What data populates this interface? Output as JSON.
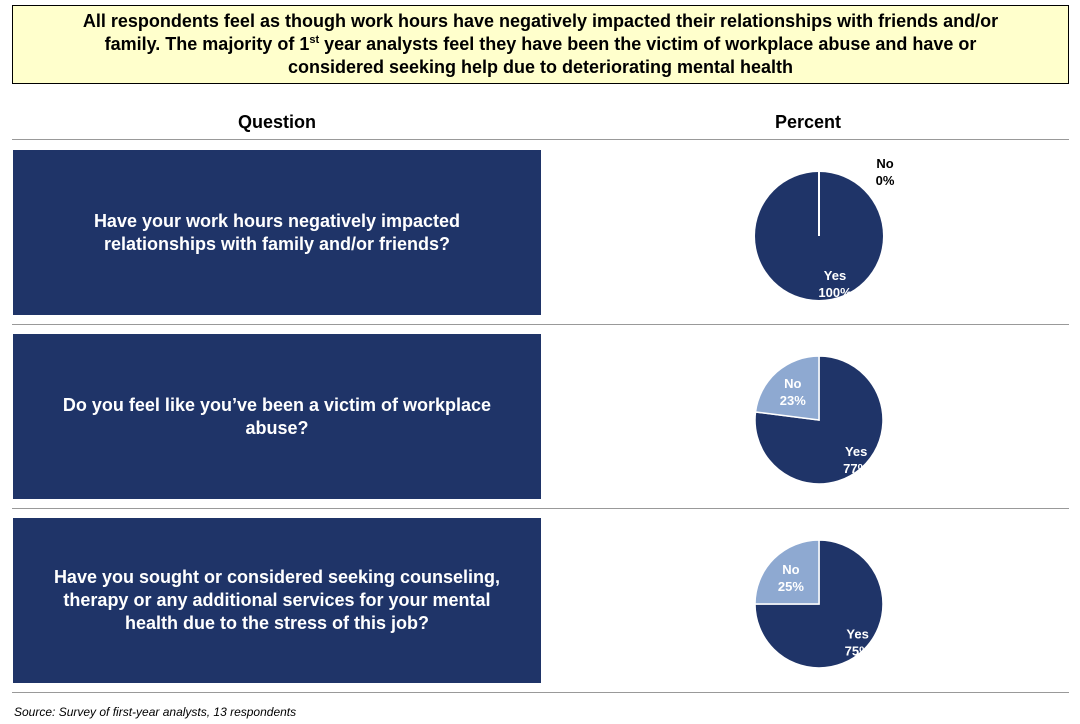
{
  "header": {
    "line1": "All respondents feel as though work hours have negatively impacted their relationships with friends and/or",
    "line2_pre": "family.  The majority of 1",
    "line2_sup": "st",
    "line2_post": " year analysts feel they have been the victim of workplace abuse and have or",
    "line3": "considered seeking help due to deteriorating mental health"
  },
  "columns": {
    "question": "Question",
    "percent": "Percent"
  },
  "colors": {
    "yes": "#1f3468",
    "no": "#8ea9d1",
    "banner": "#ffffcc"
  },
  "chart_data": [
    {
      "type": "pie",
      "question": "Have your work hours negatively impacted relationships with family and/or friends?",
      "slices": [
        {
          "label": "Yes",
          "value": 100
        },
        {
          "label": "No",
          "value": 0
        }
      ]
    },
    {
      "type": "pie",
      "question": "Do you feel like you’ve been a victim of workplace abuse?",
      "slices": [
        {
          "label": "Yes",
          "value": 77
        },
        {
          "label": "No",
          "value": 23
        }
      ]
    },
    {
      "type": "pie",
      "question": "Have you sought or considered seeking counseling, therapy or any additional services for your mental health due to the stress of this job?",
      "slices": [
        {
          "label": "Yes",
          "value": 75
        },
        {
          "label": "No",
          "value": 25
        }
      ]
    }
  ],
  "footer": {
    "source": "Source: Survey of first-year analysts, 13 respondents"
  }
}
